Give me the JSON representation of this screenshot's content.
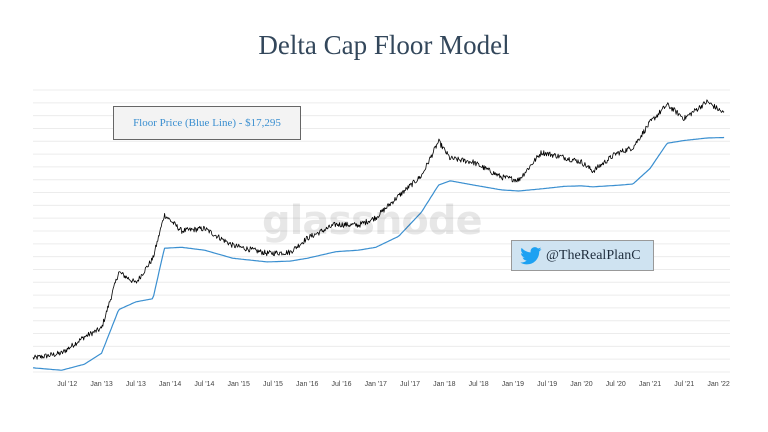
{
  "chart_data": {
    "type": "line",
    "title": "Delta Cap Floor Model",
    "xlabel": "",
    "ylabel": "",
    "log_scale_y": true,
    "grid": true,
    "x_ticks": [
      "Jul '12",
      "Jan '13",
      "Jul '13",
      "Jan '14",
      "Jul '14",
      "Jan '15",
      "Jul '15",
      "Jan '16",
      "Jul '16",
      "Jan '17",
      "Jul '17",
      "Jan '18",
      "Jul '18",
      "Jan '19",
      "Jul '19",
      "Jan '20",
      "Jul '20",
      "Jan '21",
      "Jul '21",
      "Jan '22"
    ],
    "xlim": [
      "2012-01",
      "2022-03"
    ],
    "ylim": [
      3,
      100000
    ],
    "series": [
      {
        "name": "",
        "color": "#000000",
        "x": [
          "2012-01",
          "2012-06",
          "2012-10",
          "2013-01",
          "2013-04",
          "2013-07",
          "2013-10",
          "2013-12",
          "2014-03",
          "2014-07",
          "2014-12",
          "2015-06",
          "2015-10",
          "2016-01",
          "2016-06",
          "2016-10",
          "2017-01",
          "2017-05",
          "2017-09",
          "2017-12",
          "2018-02",
          "2018-06",
          "2018-11",
          "2019-02",
          "2019-06",
          "2019-10",
          "2020-01",
          "2020-03",
          "2020-07",
          "2020-10",
          "2021-01",
          "2021-04",
          "2021-07",
          "2021-11",
          "2022-02"
        ],
        "values": [
          5,
          6,
          11,
          15,
          120,
          80,
          200,
          1000,
          550,
          600,
          320,
          240,
          250,
          420,
          700,
          680,
          900,
          2000,
          4200,
          15000,
          8000,
          7000,
          4000,
          3600,
          10000,
          8300,
          7000,
          5000,
          9500,
          12000,
          30000,
          58000,
          35000,
          65000,
          42000
        ]
      },
      {
        "name": "Floor Price (Blue Line)",
        "color": "#3a8fd0",
        "x": [
          "2012-01",
          "2012-06",
          "2012-10",
          "2013-01",
          "2013-04",
          "2013-07",
          "2013-10",
          "2013-12",
          "2014-03",
          "2014-07",
          "2014-12",
          "2015-06",
          "2015-10",
          "2016-01",
          "2016-06",
          "2016-10",
          "2017-01",
          "2017-05",
          "2017-09",
          "2017-12",
          "2018-02",
          "2018-06",
          "2018-11",
          "2019-02",
          "2019-06",
          "2019-10",
          "2020-01",
          "2020-03",
          "2020-07",
          "2020-10",
          "2021-01",
          "2021-04",
          "2021-07",
          "2021-11",
          "2022-02"
        ],
        "values": [
          3.5,
          3.2,
          4,
          6,
          30,
          40,
          45,
          290,
          300,
          270,
          200,
          175,
          180,
          200,
          255,
          270,
          300,
          450,
          1100,
          3000,
          3500,
          3000,
          2500,
          2400,
          2600,
          2850,
          2900,
          2800,
          2950,
          3100,
          5500,
          14000,
          15500,
          17000,
          17295
        ]
      }
    ]
  },
  "annotations": {
    "floor_box": "Floor Price (Blue Line) - $17,295",
    "twitter_handle": "@TheRealPlanC",
    "watermark": "glassnode"
  },
  "colors": {
    "price_line": "#000000",
    "floor_line": "#3a8fd0",
    "title": "#33475b",
    "twitter_badge_bg": "#cfe3f1",
    "twitter_icon": "#1da1f2"
  },
  "icons": {
    "twitter": "twitter-bird-icon"
  }
}
